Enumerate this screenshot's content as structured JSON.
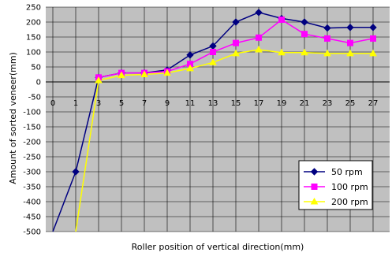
{
  "chart_data": {
    "type": "line",
    "title": "",
    "xlabel": "Roller position of vertical direction(mm)",
    "ylabel": "Amount of sorted veneer(mm)",
    "x_ticks": [
      0,
      1,
      3,
      5,
      7,
      9,
      11,
      13,
      15,
      17,
      19,
      21,
      23,
      25,
      27
    ],
    "y_ticks": [
      250,
      200,
      150,
      100,
      50,
      0,
      -50,
      -100,
      -150,
      -200,
      -250,
      -300,
      -350,
      -400,
      -450,
      -500
    ],
    "ylim": [
      -500,
      250
    ],
    "grid": true,
    "legend_position": "bottom-right",
    "series": [
      {
        "name": "50 rpm",
        "color": "#000080",
        "marker": "diamond",
        "points": [
          [
            0,
            -500
          ],
          [
            1,
            -300
          ],
          [
            3,
            15
          ],
          [
            5,
            30
          ],
          [
            7,
            30
          ],
          [
            9,
            40
          ],
          [
            11,
            90
          ],
          [
            13,
            120
          ],
          [
            15,
            200
          ],
          [
            17,
            232
          ],
          [
            19,
            212
          ],
          [
            21,
            200
          ],
          [
            23,
            180
          ],
          [
            25,
            182
          ],
          [
            27,
            182
          ]
        ]
      },
      {
        "name": "100 rpm",
        "color": "#ff00ff",
        "marker": "square",
        "points": [
          [
            3,
            15
          ],
          [
            5,
            30
          ],
          [
            7,
            30
          ],
          [
            9,
            35
          ],
          [
            11,
            60
          ],
          [
            13,
            100
          ],
          [
            15,
            130
          ],
          [
            17,
            148
          ],
          [
            19,
            208
          ],
          [
            21,
            160
          ],
          [
            23,
            145
          ],
          [
            25,
            130
          ],
          [
            27,
            145
          ]
        ]
      },
      {
        "name": "200 rpm",
        "color": "#ffff00",
        "marker": "triangle",
        "points": [
          [
            1,
            -500
          ],
          [
            3,
            5
          ],
          [
            5,
            22
          ],
          [
            7,
            25
          ],
          [
            9,
            30
          ],
          [
            11,
            45
          ],
          [
            13,
            65
          ],
          [
            15,
            95
          ],
          [
            17,
            108
          ],
          [
            19,
            98
          ],
          [
            21,
            98
          ],
          [
            23,
            95
          ],
          [
            25,
            95
          ],
          [
            27,
            95
          ]
        ]
      }
    ]
  }
}
